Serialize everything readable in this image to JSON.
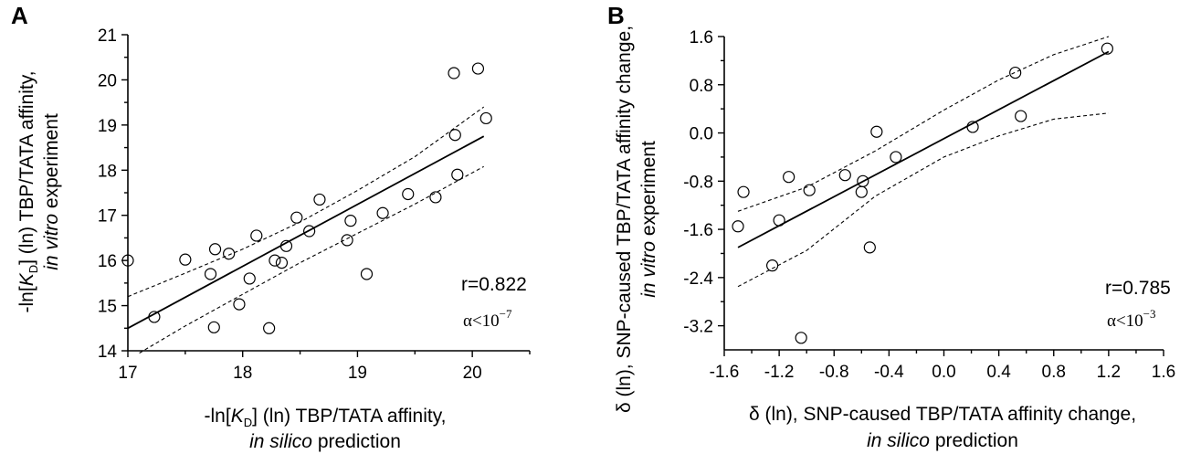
{
  "chart_data": [
    {
      "panel": "A",
      "type": "scatter",
      "xlim": [
        17,
        20.5
      ],
      "ylim": [
        14,
        21
      ],
      "xticks": [
        17,
        18,
        19,
        20
      ],
      "yticks": [
        14,
        15,
        16,
        17,
        18,
        19,
        20,
        21
      ],
      "xlabel_line1": "-ln[K_D] (ln) TBP/TATA affinity,",
      "xlabel_line2": "in silico prediction",
      "ylabel_line1": "-ln[K_D] (ln) TBP/TATA affinity,",
      "ylabel_line2": "in vitro experiment",
      "r_text": "r=0.822",
      "alpha_text": "α<10",
      "alpha_exp": "−7",
      "points": [
        [
          17.0,
          16.0
        ],
        [
          17.23,
          14.75
        ],
        [
          17.5,
          16.02
        ],
        [
          17.72,
          15.7
        ],
        [
          17.75,
          14.52
        ],
        [
          17.76,
          16.25
        ],
        [
          17.88,
          16.15
        ],
        [
          17.97,
          15.03
        ],
        [
          18.06,
          15.6
        ],
        [
          18.12,
          16.55
        ],
        [
          18.23,
          14.5
        ],
        [
          18.28,
          16.0
        ],
        [
          18.34,
          15.95
        ],
        [
          18.38,
          16.32
        ],
        [
          18.47,
          16.95
        ],
        [
          18.58,
          16.65
        ],
        [
          18.67,
          17.35
        ],
        [
          18.91,
          16.45
        ],
        [
          18.94,
          16.88
        ],
        [
          19.08,
          15.7
        ],
        [
          19.22,
          17.05
        ],
        [
          19.44,
          17.47
        ],
        [
          19.68,
          17.4
        ],
        [
          19.84,
          20.15
        ],
        [
          19.85,
          18.78
        ],
        [
          19.87,
          17.9
        ],
        [
          20.05,
          20.25
        ],
        [
          20.12,
          19.15
        ]
      ],
      "fit": [
        [
          17.0,
          14.5
        ],
        [
          20.1,
          18.75
        ]
      ],
      "ci_upper": [
        [
          17.0,
          15.2
        ],
        [
          17.5,
          15.72
        ],
        [
          18.0,
          16.25
        ],
        [
          18.5,
          16.85
        ],
        [
          19.0,
          17.55
        ],
        [
          19.5,
          18.3
        ],
        [
          20.1,
          19.4
        ]
      ],
      "ci_lower": [
        [
          17.1,
          13.95
        ],
        [
          17.5,
          14.55
        ],
        [
          18.0,
          15.25
        ],
        [
          18.5,
          15.95
        ],
        [
          19.0,
          16.6
        ],
        [
          19.5,
          17.25
        ],
        [
          20.1,
          18.08
        ]
      ]
    },
    {
      "panel": "B",
      "type": "scatter",
      "xlim": [
        -1.6,
        1.6
      ],
      "ylim": [
        -3.6,
        1.6
      ],
      "xticks": [
        -1.6,
        -1.2,
        -0.8,
        -0.4,
        0.0,
        0.4,
        0.8,
        1.2,
        1.6
      ],
      "xtick_labels": [
        "-1.6",
        "-1.2",
        "-0.8",
        "-0.4",
        "0.0",
        "0.4",
        "0.8",
        "1.2",
        "1.6"
      ],
      "yticks": [
        1.6,
        0.8,
        0.0,
        -0.8,
        -1.6,
        -2.4,
        -3.2
      ],
      "ytick_labels": [
        "1.6",
        "0.8",
        "0.0",
        "-0.8",
        "-1.6",
        "-2.4",
        "-3.2"
      ],
      "xlabel_line1": "δ (ln), SNP-caused TBP/TATA affinity change,",
      "xlabel_line2": "in silico prediction",
      "ylabel_line1": "δ (ln), SNP-caused TBP/TATA affinity change,",
      "ylabel_line2": "in vitro experiment",
      "r_text": "r=0.785",
      "alpha_text": "α<10",
      "alpha_exp": "−3",
      "points": [
        [
          -1.5,
          -1.55
        ],
        [
          -1.46,
          -0.98
        ],
        [
          -1.25,
          -2.2
        ],
        [
          -1.2,
          -1.45
        ],
        [
          -1.13,
          -0.73
        ],
        [
          -1.04,
          -3.4
        ],
        [
          -0.98,
          -0.95
        ],
        [
          -0.72,
          -0.7
        ],
        [
          -0.6,
          -0.98
        ],
        [
          -0.59,
          -0.8
        ],
        [
          -0.54,
          -1.9
        ],
        [
          -0.49,
          0.02
        ],
        [
          -0.35,
          -0.4
        ],
        [
          0.21,
          0.1
        ],
        [
          0.52,
          1.0
        ],
        [
          0.56,
          0.28
        ],
        [
          1.19,
          1.4
        ]
      ],
      "fit": [
        [
          -1.5,
          -1.9
        ],
        [
          1.2,
          1.35
        ]
      ],
      "ci_upper": [
        [
          -1.5,
          -1.3
        ],
        [
          -1.0,
          -0.9
        ],
        [
          -0.5,
          -0.3
        ],
        [
          0.0,
          0.38
        ],
        [
          0.4,
          0.88
        ],
        [
          0.8,
          1.3
        ],
        [
          1.2,
          1.6
        ]
      ],
      "ci_lower": [
        [
          -1.5,
          -2.55
        ],
        [
          -1.0,
          -1.95
        ],
        [
          -0.5,
          -1.05
        ],
        [
          0.0,
          -0.4
        ],
        [
          0.4,
          -0.05
        ],
        [
          0.8,
          0.23
        ],
        [
          1.2,
          0.33
        ]
      ]
    }
  ]
}
